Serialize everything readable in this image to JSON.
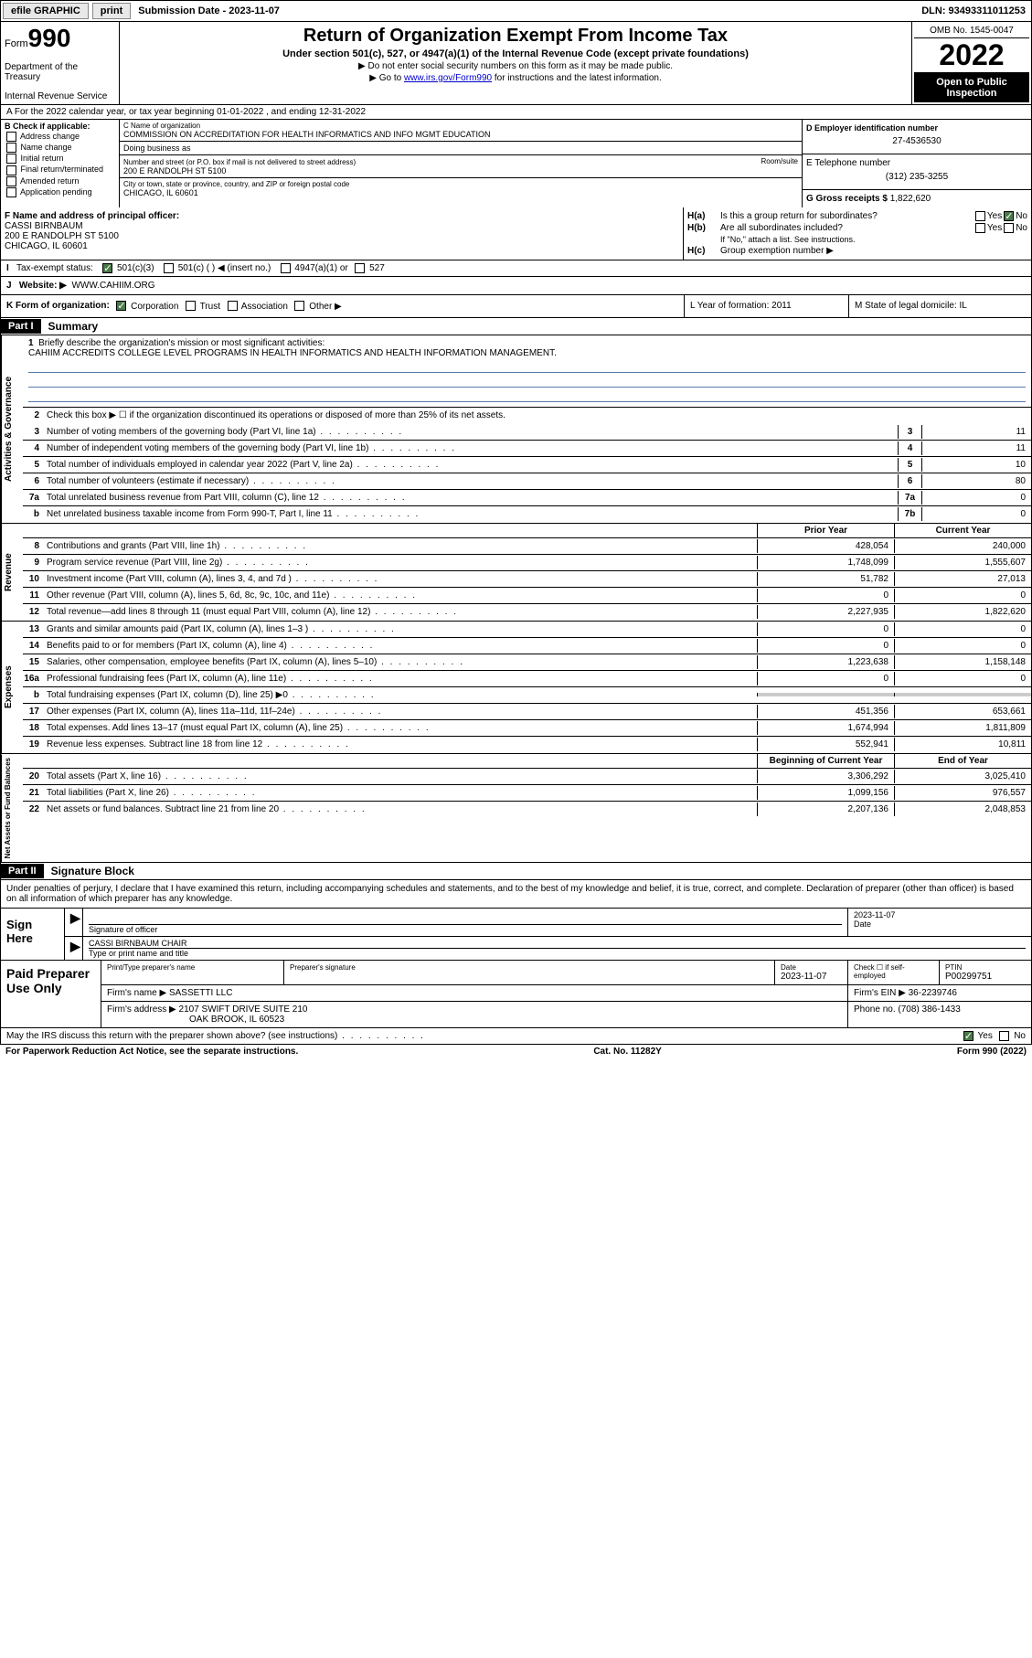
{
  "topbar": {
    "efile": "efile GRAPHIC",
    "print": "print",
    "submission_label": "Submission Date - 2023-11-07",
    "dln": "DLN: 93493311011253"
  },
  "header": {
    "form_prefix": "Form",
    "form_num": "990",
    "dept": "Department of the Treasury",
    "irs": "Internal Revenue Service",
    "title": "Return of Organization Exempt From Income Tax",
    "sub": "Under section 501(c), 527, or 4947(a)(1) of the Internal Revenue Code (except private foundations)",
    "note1": "▶ Do not enter social security numbers on this form as it may be made public.",
    "note2_pre": "▶ Go to ",
    "note2_link": "www.irs.gov/Form990",
    "note2_post": " for instructions and the latest information.",
    "omb": "OMB No. 1545-0047",
    "year": "2022",
    "open_pub": "Open to Public Inspection"
  },
  "row_a": "A For the 2022 calendar year, or tax year beginning 01-01-2022   , and ending 12-31-2022",
  "col_b": {
    "hdr": "B Check if applicable:",
    "addr_change": "Address change",
    "name_change": "Name change",
    "initial": "Initial return",
    "final": "Final return/terminated",
    "amended": "Amended return",
    "app_pending": "Application pending"
  },
  "col_c": {
    "name_lbl": "C Name of organization",
    "name": "COMMISSION ON ACCREDITATION FOR HEALTH INFORMATICS AND INFO MGMT EDUCATION",
    "dba_lbl": "Doing business as",
    "addr_lbl": "Number and street (or P.O. box if mail is not delivered to street address)",
    "addr": "200 E RANDOLPH ST 5100",
    "room_lbl": "Room/suite",
    "city_lbl": "City or town, state or province, country, and ZIP or foreign postal code",
    "city": "CHICAGO, IL  60601"
  },
  "col_d": {
    "lbl": "D Employer identification number",
    "val": "27-4536530"
  },
  "col_e": {
    "lbl": "E Telephone number",
    "val": "(312) 235-3255"
  },
  "col_g": {
    "lbl": "G Gross receipts $",
    "val": "1,822,620"
  },
  "col_f": {
    "lbl": "F Name and address of principal officer:",
    "name": "CASSI BIRNBAUM",
    "addr1": "200 E RANDOLPH ST 5100",
    "addr2": "CHICAGO, IL  60601"
  },
  "col_h": {
    "ha_lbl": "H(a)",
    "ha_text": "Is this a group return for subordinates?",
    "hb_lbl": "H(b)",
    "hb_text": "Are all subordinates included?",
    "hb_note": "If \"No,\" attach a list. See instructions.",
    "hc_lbl": "H(c)",
    "hc_text": "Group exemption number ▶",
    "yes": "Yes",
    "no": "No"
  },
  "row_i": {
    "lbl": "I",
    "text": "Tax-exempt status:",
    "c3": "501(c)(3)",
    "c": "501(c) (  ) ◀ (insert no.)",
    "a4947": "4947(a)(1) or",
    "s527": "527"
  },
  "row_j": {
    "lbl": "J",
    "text": "Website: ▶",
    "val": "WWW.CAHIIM.ORG"
  },
  "row_k": {
    "lbl": "K Form of organization:",
    "corp": "Corporation",
    "trust": "Trust",
    "assoc": "Association",
    "other": "Other ▶",
    "l": "L Year of formation: 2011",
    "m": "M State of legal domicile: IL"
  },
  "part1": {
    "hdr": "Part I",
    "title": "Summary"
  },
  "gov": {
    "vtab": "Activities & Governance",
    "l1_lbl": "1",
    "l1": "Briefly describe the organization's mission or most significant activities:",
    "l1_val": "CAHIIM ACCREDITS COLLEGE LEVEL PROGRAMS IN HEALTH INFORMATICS AND HEALTH INFORMATION MANAGEMENT.",
    "l2_lbl": "2",
    "l2": "Check this box ▶ ☐  if the organization discontinued its operations or disposed of more than 25% of its net assets.",
    "l3_lbl": "3",
    "l3": "Number of voting members of the governing body (Part VI, line 1a)",
    "l3_box": "3",
    "l3_val": "11",
    "l4_lbl": "4",
    "l4": "Number of independent voting members of the governing body (Part VI, line 1b)",
    "l4_box": "4",
    "l4_val": "11",
    "l5_lbl": "5",
    "l5": "Total number of individuals employed in calendar year 2022 (Part V, line 2a)",
    "l5_box": "5",
    "l5_val": "10",
    "l6_lbl": "6",
    "l6": "Total number of volunteers (estimate if necessary)",
    "l6_box": "6",
    "l6_val": "80",
    "l7a_lbl": "7a",
    "l7a": "Total unrelated business revenue from Part VIII, column (C), line 12",
    "l7a_box": "7a",
    "l7a_val": "0",
    "l7b_lbl": "b",
    "l7b": "Net unrelated business taxable income from Form 990-T, Part I, line 11",
    "l7b_box": "7b",
    "l7b_val": "0"
  },
  "rev": {
    "vtab": "Revenue",
    "prior_hdr": "Prior Year",
    "curr_hdr": "Current Year",
    "rows": [
      {
        "n": "8",
        "d": "Contributions and grants (Part VIII, line 1h)",
        "p": "428,054",
        "c": "240,000"
      },
      {
        "n": "9",
        "d": "Program service revenue (Part VIII, line 2g)",
        "p": "1,748,099",
        "c": "1,555,607"
      },
      {
        "n": "10",
        "d": "Investment income (Part VIII, column (A), lines 3, 4, and 7d )",
        "p": "51,782",
        "c": "27,013"
      },
      {
        "n": "11",
        "d": "Other revenue (Part VIII, column (A), lines 5, 6d, 8c, 9c, 10c, and 11e)",
        "p": "0",
        "c": "0"
      },
      {
        "n": "12",
        "d": "Total revenue—add lines 8 through 11 (must equal Part VIII, column (A), line 12)",
        "p": "2,227,935",
        "c": "1,822,620"
      }
    ]
  },
  "exp": {
    "vtab": "Expenses",
    "rows": [
      {
        "n": "13",
        "d": "Grants and similar amounts paid (Part IX, column (A), lines 1–3 )",
        "p": "0",
        "c": "0"
      },
      {
        "n": "14",
        "d": "Benefits paid to or for members (Part IX, column (A), line 4)",
        "p": "0",
        "c": "0"
      },
      {
        "n": "15",
        "d": "Salaries, other compensation, employee benefits (Part IX, column (A), lines 5–10)",
        "p": "1,223,638",
        "c": "1,158,148"
      },
      {
        "n": "16a",
        "d": "Professional fundraising fees (Part IX, column (A), line 11e)",
        "p": "0",
        "c": "0"
      },
      {
        "n": "b",
        "d": "Total fundraising expenses (Part IX, column (D), line 25) ▶0",
        "p": "",
        "c": "",
        "shaded": true
      },
      {
        "n": "17",
        "d": "Other expenses (Part IX, column (A), lines 11a–11d, 11f–24e)",
        "p": "451,356",
        "c": "653,661"
      },
      {
        "n": "18",
        "d": "Total expenses. Add lines 13–17 (must equal Part IX, column (A), line 25)",
        "p": "1,674,994",
        "c": "1,811,809"
      },
      {
        "n": "19",
        "d": "Revenue less expenses. Subtract line 18 from line 12",
        "p": "552,941",
        "c": "10,811"
      }
    ]
  },
  "net": {
    "vtab": "Net Assets or Fund Balances",
    "beg_hdr": "Beginning of Current Year",
    "end_hdr": "End of Year",
    "rows": [
      {
        "n": "20",
        "d": "Total assets (Part X, line 16)",
        "p": "3,306,292",
        "c": "3,025,410"
      },
      {
        "n": "21",
        "d": "Total liabilities (Part X, line 26)",
        "p": "1,099,156",
        "c": "976,557"
      },
      {
        "n": "22",
        "d": "Net assets or fund balances. Subtract line 21 from line 20",
        "p": "2,207,136",
        "c": "2,048,853"
      }
    ]
  },
  "part2": {
    "hdr": "Part II",
    "title": "Signature Block",
    "decl": "Under penalties of perjury, I declare that I have examined this return, including accompanying schedules and statements, and to the best of my knowledge and belief, it is true, correct, and complete. Declaration of preparer (other than officer) is based on all information of which preparer has any knowledge."
  },
  "sign": {
    "here": "Sign Here",
    "sig_off": "Signature of officer",
    "date": "Date",
    "date_val": "2023-11-07",
    "name": "CASSI BIRNBAUM  CHAIR",
    "name_lbl": "Type or print name and title"
  },
  "prep": {
    "lbl": "Paid Preparer Use Only",
    "pt_name_lbl": "Print/Type preparer's name",
    "sig_lbl": "Preparer's signature",
    "date_lbl": "Date",
    "date_val": "2023-11-07",
    "check_lbl": "Check ☐ if self-employed",
    "ptin_lbl": "PTIN",
    "ptin": "P00299751",
    "firm_name_lbl": "Firm's name    ▶",
    "firm_name": "SASSETTI LLC",
    "firm_ein_lbl": "Firm's EIN ▶",
    "firm_ein": "36-2239746",
    "firm_addr_lbl": "Firm's address ▶",
    "firm_addr1": "2107 SWIFT DRIVE SUITE 210",
    "firm_addr2": "OAK BROOK, IL  60523",
    "phone_lbl": "Phone no.",
    "phone": "(708) 386-1433"
  },
  "footer": {
    "discuss": "May the IRS discuss this return with the preparer shown above? (see instructions)",
    "yes": "Yes",
    "no": "No",
    "paperwork": "For Paperwork Reduction Act Notice, see the separate instructions.",
    "cat": "Cat. No. 11282Y",
    "form": "Form 990 (2022)"
  }
}
